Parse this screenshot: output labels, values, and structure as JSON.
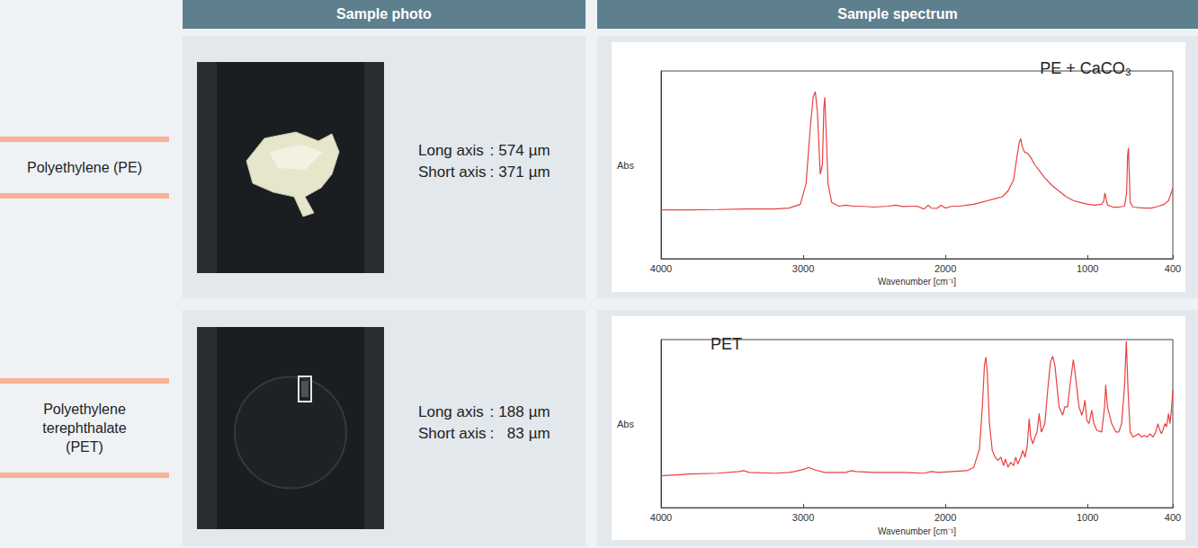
{
  "header": {
    "photo": "Sample photo",
    "spectrum": "Sample spectrum"
  },
  "separator": ":",
  "rows": [
    {
      "label": "Polyethylene (PE)",
      "dimensions": [
        {
          "label": "Long axis",
          "value": 574,
          "unit": "µm"
        },
        {
          "label": "Short axis",
          "value": 371,
          "unit": "µm"
        }
      ]
    },
    {
      "label": "Polyethylene terephthalate (PET)",
      "dimensions": [
        {
          "label": "Long axis",
          "value": 188,
          "unit": "µm"
        },
        {
          "label": "Short axis",
          "value": 83,
          "unit": "µm"
        }
      ]
    }
  ],
  "chart_data": [
    {
      "type": "line",
      "annotation": "PE + CaCO₃",
      "y_label": "Abs",
      "x_label": "Wavenumber [cm⁻¹]",
      "color": "#e8413f",
      "xlim": [
        4000,
        400
      ],
      "xticks": [
        4000,
        3000,
        2000,
        1000,
        400
      ],
      "ylim": [
        0,
        1
      ],
      "tick_labels": "x",
      "grid": false,
      "x": [
        4000,
        3800,
        3600,
        3400,
        3200,
        3100,
        3020,
        2980,
        2950,
        2930,
        2915,
        2900,
        2880,
        2865,
        2855,
        2848,
        2840,
        2825,
        2800,
        2750,
        2700,
        2650,
        2600,
        2500,
        2400,
        2350,
        2300,
        2200,
        2150,
        2120,
        2100,
        2060,
        2030,
        2000,
        1950,
        1900,
        1850,
        1800,
        1750,
        1700,
        1650,
        1600,
        1560,
        1520,
        1495,
        1480,
        1470,
        1460,
        1445,
        1420,
        1400,
        1370,
        1330,
        1300,
        1250,
        1200,
        1150,
        1100,
        1050,
        1000,
        950,
        900,
        885,
        878,
        872,
        860,
        820,
        780,
        740,
        725,
        718,
        712,
        706,
        700,
        680,
        600,
        550,
        500,
        460,
        430,
        400
      ],
      "values": [
        0.26,
        0.26,
        0.262,
        0.265,
        0.265,
        0.27,
        0.29,
        0.4,
        0.7,
        0.86,
        0.89,
        0.78,
        0.45,
        0.5,
        0.8,
        0.86,
        0.7,
        0.4,
        0.3,
        0.28,
        0.285,
        0.28,
        0.28,
        0.275,
        0.28,
        0.285,
        0.278,
        0.28,
        0.265,
        0.285,
        0.27,
        0.268,
        0.285,
        0.27,
        0.28,
        0.28,
        0.285,
        0.29,
        0.3,
        0.31,
        0.32,
        0.33,
        0.36,
        0.42,
        0.55,
        0.62,
        0.64,
        0.6,
        0.57,
        0.56,
        0.54,
        0.5,
        0.46,
        0.43,
        0.39,
        0.36,
        0.33,
        0.31,
        0.3,
        0.29,
        0.285,
        0.29,
        0.31,
        0.35,
        0.33,
        0.285,
        0.275,
        0.275,
        0.28,
        0.35,
        0.55,
        0.59,
        0.45,
        0.3,
        0.275,
        0.27,
        0.27,
        0.28,
        0.29,
        0.31,
        0.375
      ]
    },
    {
      "type": "line",
      "annotation": "PET",
      "y_label": "Abs",
      "x_label": "Wavenumber [cm⁻¹]",
      "color": "#e8413f",
      "xlim": [
        4000,
        400
      ],
      "xticks": [
        4000,
        3000,
        2000,
        1000,
        400
      ],
      "ylim": [
        0,
        1
      ],
      "tick_labels": "x",
      "grid": false,
      "x": [
        4000,
        3800,
        3600,
        3450,
        3420,
        3380,
        3200,
        3100,
        3060,
        2990,
        2960,
        2920,
        2850,
        2700,
        2660,
        2630,
        2500,
        2300,
        2150,
        2100,
        2050,
        1950,
        1850,
        1800,
        1760,
        1740,
        1725,
        1715,
        1705,
        1690,
        1670,
        1650,
        1630,
        1610,
        1590,
        1578,
        1560,
        1540,
        1520,
        1505,
        1490,
        1470,
        1455,
        1440,
        1425,
        1410,
        1400,
        1385,
        1370,
        1355,
        1340,
        1325,
        1300,
        1280,
        1260,
        1245,
        1230,
        1200,
        1175,
        1160,
        1140,
        1120,
        1100,
        1090,
        1060,
        1040,
        1030,
        1018,
        1005,
        990,
        970,
        955,
        935,
        900,
        880,
        872,
        860,
        845,
        830,
        800,
        780,
        760,
        740,
        727,
        715,
        700,
        680,
        660,
        640,
        620,
        600,
        580,
        560,
        540,
        520,
        505,
        495,
        480,
        470,
        455,
        445,
        430,
        420,
        410,
        400
      ],
      "values": [
        0.19,
        0.2,
        0.205,
        0.215,
        0.22,
        0.21,
        0.205,
        0.21,
        0.215,
        0.23,
        0.24,
        0.225,
        0.21,
        0.21,
        0.22,
        0.215,
        0.21,
        0.21,
        0.205,
        0.215,
        0.21,
        0.215,
        0.22,
        0.24,
        0.35,
        0.6,
        0.85,
        0.895,
        0.8,
        0.5,
        0.34,
        0.3,
        0.28,
        0.3,
        0.25,
        0.29,
        0.24,
        0.27,
        0.25,
        0.3,
        0.26,
        0.3,
        0.34,
        0.3,
        0.36,
        0.53,
        0.42,
        0.38,
        0.42,
        0.45,
        0.56,
        0.45,
        0.5,
        0.7,
        0.87,
        0.9,
        0.85,
        0.6,
        0.55,
        0.6,
        0.6,
        0.75,
        0.88,
        0.82,
        0.6,
        0.55,
        0.58,
        0.64,
        0.52,
        0.5,
        0.58,
        0.5,
        0.46,
        0.45,
        0.6,
        0.73,
        0.6,
        0.55,
        0.5,
        0.45,
        0.45,
        0.5,
        0.72,
        0.99,
        0.7,
        0.45,
        0.42,
        0.43,
        0.44,
        0.42,
        0.43,
        0.42,
        0.44,
        0.42,
        0.45,
        0.5,
        0.47,
        0.44,
        0.46,
        0.5,
        0.48,
        0.56,
        0.5,
        0.58,
        0.7
      ]
    }
  ]
}
